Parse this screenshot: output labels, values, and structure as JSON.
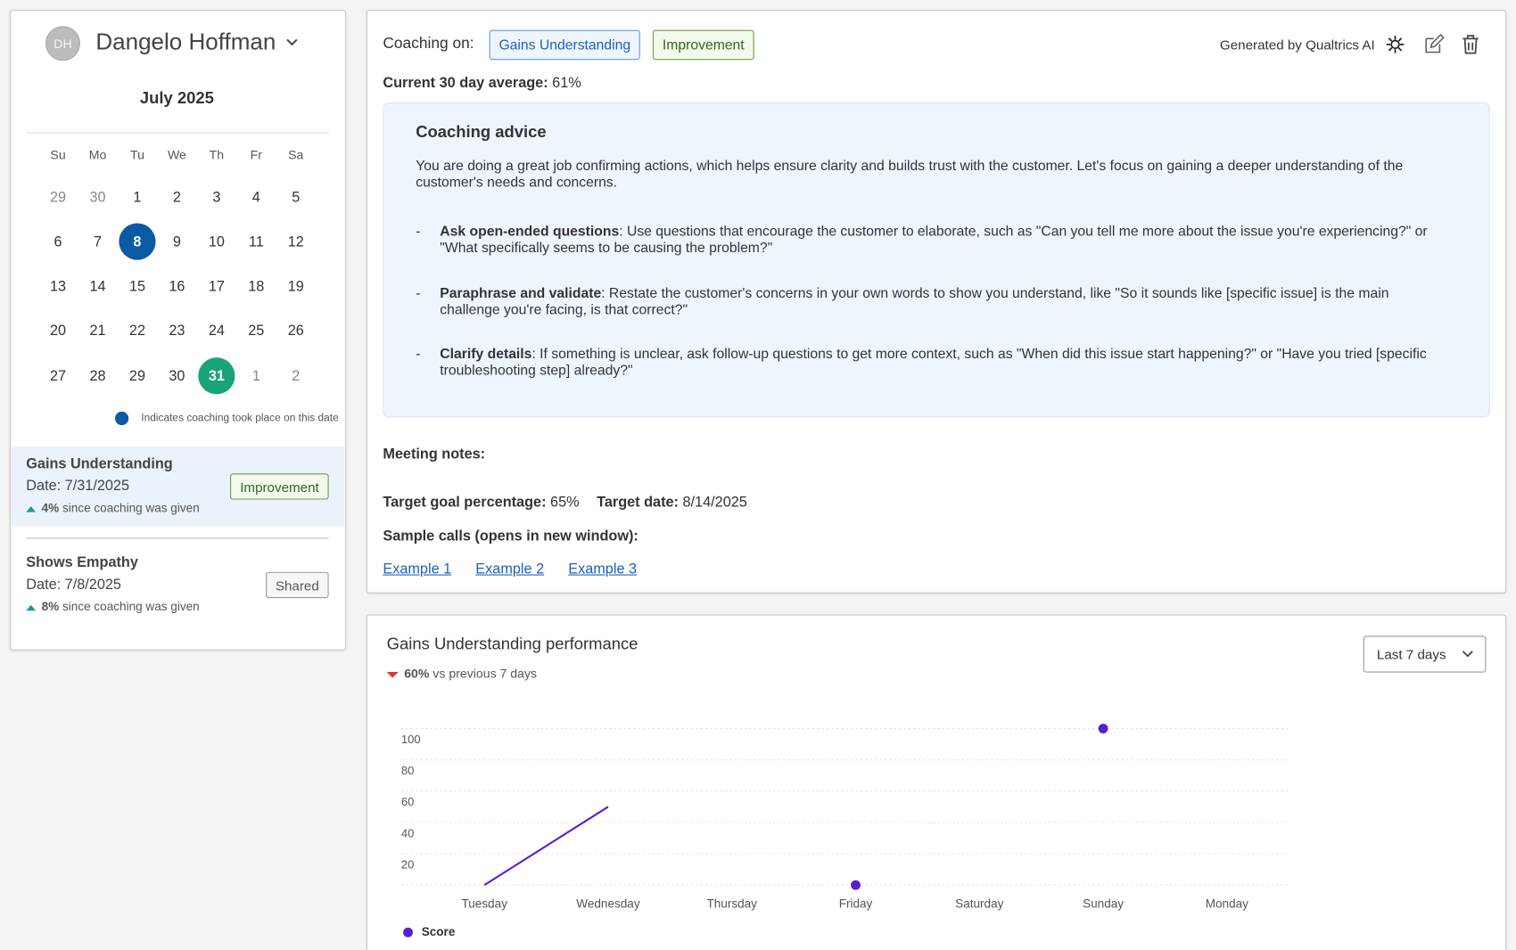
{
  "profile": {
    "initials": "DH",
    "name": "Dangelo Hoffman"
  },
  "calendar": {
    "month": "July 2025",
    "weekdays": [
      "Su",
      "Mo",
      "Tu",
      "We",
      "Th",
      "Fr",
      "Sa"
    ],
    "weeks": [
      [
        {
          "day": 29,
          "outside": true
        },
        {
          "day": 30,
          "outside": true
        },
        1,
        2,
        3,
        4,
        5
      ],
      [
        6,
        7,
        {
          "day": 8,
          "state": "coaching"
        },
        9,
        10,
        11,
        12
      ],
      [
        13,
        14,
        15,
        16,
        17,
        18,
        19
      ],
      [
        20,
        21,
        22,
        23,
        24,
        25,
        26
      ],
      [
        27,
        28,
        29,
        30,
        {
          "day": 31,
          "state": "selected"
        },
        {
          "day": 1,
          "outside": true
        },
        {
          "day": 2,
          "outside": true
        }
      ]
    ],
    "legend": "Indicates coaching took place on this date"
  },
  "sessions": [
    {
      "title": "Gains Understanding",
      "date": "Date: 7/31/2025",
      "badge": "Improvement",
      "badge_tone": "green",
      "change": "4%",
      "change_text": "since coaching was given",
      "trend": "up",
      "selected": true
    },
    {
      "title": "Shows Empathy",
      "date": "Date: 7/8/2025",
      "badge": "Shared",
      "badge_tone": "gray",
      "change": "8%",
      "change_text": "since coaching was given",
      "trend": "up",
      "selected": false
    }
  ],
  "coaching": {
    "label": "Coaching on:",
    "tags": [
      {
        "text": "Gains Understanding",
        "tone": "blue"
      },
      {
        "text": "Improvement",
        "tone": "green"
      }
    ],
    "generated": "Generated by Qualtrics AI",
    "average_label": "Current 30 day average:",
    "average": "61%",
    "advice_title": "Coaching advice",
    "advice_intro": "You are doing a great job confirming actions, which helps ensure clarity and builds trust with the customer. Let's focus on gaining a deeper understanding of the customer's needs and concerns.",
    "bullets": [
      {
        "term": "Ask open-ended questions",
        "text": ": Use questions that encourage the customer to elaborate, such as \"Can you tell me more about the issue you're experiencing?\" or \"What specifically seems to be causing the problem?\""
      },
      {
        "term": "Paraphrase and validate",
        "text": ": Restate the customer's concerns in your own words to show you understand, like \"So it sounds like [specific issue] is the main challenge you're facing, is that correct?\""
      },
      {
        "term": "Clarify details",
        "text": ": If something is unclear, ask follow-up questions to get more context, such as \"When did this issue start happening?\" or \"Have you tried [specific troubleshooting step] already?\""
      }
    ],
    "meeting_notes": "Meeting notes:",
    "target_goal_label": "Target goal percentage:",
    "target_goal": "65%",
    "target_date_label": "Target date:",
    "target_date": "8/14/2025",
    "samples_label": "Sample calls (opens in new window):",
    "samples": [
      "Example 1",
      "Example 2",
      "Example 3"
    ]
  },
  "performance": {
    "title": "Gains Understanding performance",
    "change": "60%",
    "change_text": "vs previous 7 days",
    "trend": "down",
    "range": "Last 7 days"
  },
  "chart_data": {
    "type": "line",
    "categories": [
      "Tuesday",
      "Wednesday",
      "Thursday",
      "Friday",
      "Saturday",
      "Sunday",
      "Monday"
    ],
    "series": [
      {
        "name": "Score",
        "color": "#5a1fd1",
        "values": [
          0,
          50,
          null,
          0,
          null,
          100,
          null
        ]
      }
    ],
    "ylim": [
      0,
      100
    ],
    "yticks": [
      20,
      40,
      60,
      80,
      100
    ],
    "grid": true
  }
}
